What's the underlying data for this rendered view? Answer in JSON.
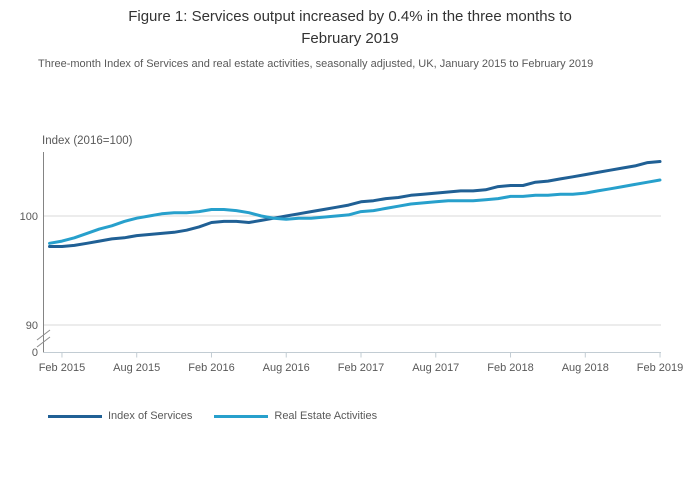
{
  "figure": {
    "title_line1": "Figure 1: Services output increased by 0.4% in the three months to",
    "title_line2": "February 2019",
    "subtitle": "Three-month Index of Services and real estate activities, seasonally adjusted, UK, January 2015 to February 2019"
  },
  "colors": {
    "dark_blue": "#206095",
    "light_blue": "#27A0CC",
    "gridline": "#d9d9d9",
    "y_axis": "#848484",
    "x_axis": "#c2ccd3",
    "tick_text": "#595959"
  },
  "chart_data": {
    "type": "line",
    "title": "Figure 1: Services output increased by 0.4% in the three months to February 2019",
    "y_axis_label": "Index (2016=100)",
    "xlabel": "",
    "ylabel": "Index (2016=100)",
    "grid": "horizontal",
    "legend_position": "bottom",
    "axis_break": true,
    "ylim_display": [
      90,
      106
    ],
    "y_ticks": [
      100,
      90
    ],
    "y_origin_label": "0",
    "x": [
      "Jan 2015",
      "Feb 2015",
      "Mar 2015",
      "Apr 2015",
      "May 2015",
      "Jun 2015",
      "Jul 2015",
      "Aug 2015",
      "Sep 2015",
      "Oct 2015",
      "Nov 2015",
      "Dec 2015",
      "Jan 2016",
      "Feb 2016",
      "Mar 2016",
      "Apr 2016",
      "May 2016",
      "Jun 2016",
      "Jul 2016",
      "Aug 2016",
      "Sep 2016",
      "Oct 2016",
      "Nov 2016",
      "Dec 2016",
      "Jan 2017",
      "Feb 2017",
      "Mar 2017",
      "Apr 2017",
      "May 2017",
      "Jun 2017",
      "Jul 2017",
      "Aug 2017",
      "Sep 2017",
      "Oct 2017",
      "Nov 2017",
      "Dec 2017",
      "Jan 2018",
      "Feb 2018",
      "Mar 2018",
      "Apr 2018",
      "May 2018",
      "Jun 2018",
      "Jul 2018",
      "Aug 2018",
      "Sep 2018",
      "Oct 2018",
      "Nov 2018",
      "Dec 2018",
      "Jan 2019",
      "Feb 2019"
    ],
    "x_ticks": [
      {
        "label": "Feb 2015",
        "i": 1
      },
      {
        "label": "Aug 2015",
        "i": 7
      },
      {
        "label": "Feb 2016",
        "i": 13
      },
      {
        "label": "Aug 2016",
        "i": 19
      },
      {
        "label": "Feb 2017",
        "i": 25
      },
      {
        "label": "Aug 2017",
        "i": 31
      },
      {
        "label": "Feb 2018",
        "i": 37
      },
      {
        "label": "Aug 2018",
        "i": 43
      },
      {
        "label": "Feb 2019",
        "i": 49
      }
    ],
    "series": [
      {
        "name": "Index of Services",
        "color": "#206095",
        "values": [
          97.2,
          97.2,
          97.3,
          97.5,
          97.7,
          97.9,
          98.0,
          98.2,
          98.3,
          98.4,
          98.5,
          98.7,
          99.0,
          99.4,
          99.5,
          99.5,
          99.4,
          99.6,
          99.8,
          100.0,
          100.2,
          100.4,
          100.6,
          100.8,
          101.0,
          101.3,
          101.4,
          101.6,
          101.7,
          101.9,
          102.0,
          102.1,
          102.2,
          102.3,
          102.3,
          102.4,
          102.7,
          102.8,
          102.8,
          103.1,
          103.2,
          103.4,
          103.6,
          103.8,
          104.0,
          104.2,
          104.4,
          104.6,
          104.9,
          105.0
        ]
      },
      {
        "name": "Real Estate Activities",
        "color": "#27A0CC",
        "values": [
          97.5,
          97.7,
          98.0,
          98.4,
          98.8,
          99.1,
          99.5,
          99.8,
          100.0,
          100.2,
          100.3,
          100.3,
          100.4,
          100.6,
          100.6,
          100.5,
          100.3,
          100.0,
          99.8,
          99.7,
          99.8,
          99.8,
          99.9,
          100.0,
          100.1,
          100.4,
          100.5,
          100.7,
          100.9,
          101.1,
          101.2,
          101.3,
          101.4,
          101.4,
          101.4,
          101.5,
          101.6,
          101.8,
          101.8,
          101.9,
          101.9,
          102.0,
          102.0,
          102.1,
          102.3,
          102.5,
          102.7,
          102.9,
          103.1,
          103.3
        ]
      }
    ]
  }
}
